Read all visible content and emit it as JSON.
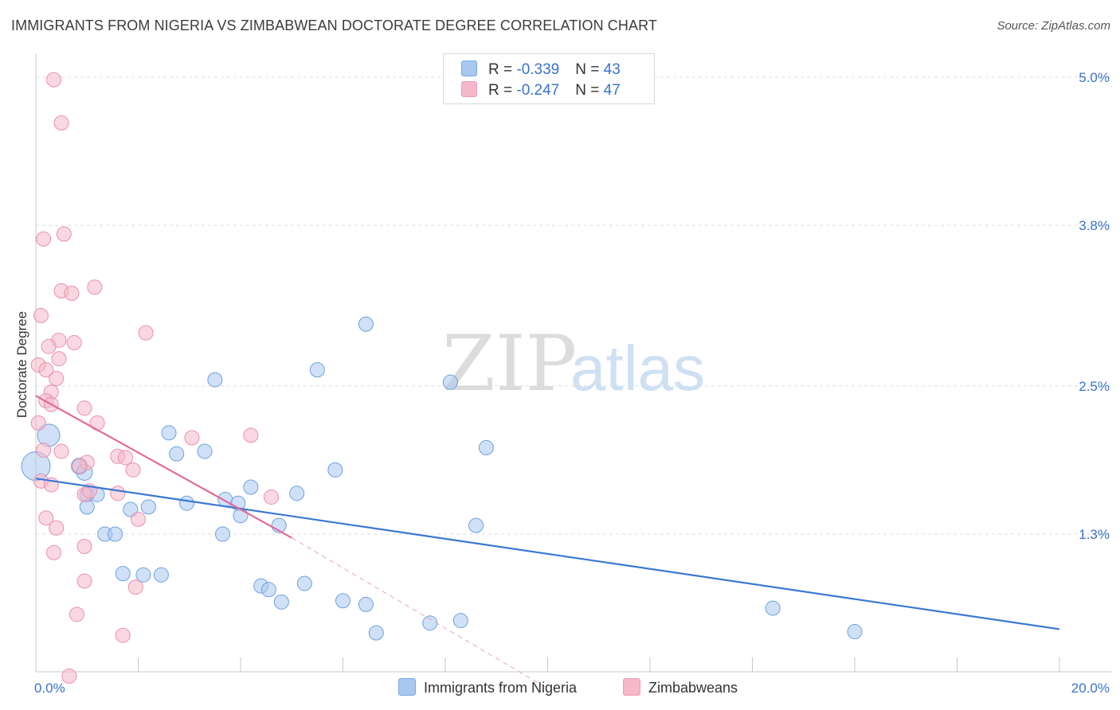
{
  "title": "IMMIGRANTS FROM NIGERIA VS ZIMBABWEAN DOCTORATE DEGREE CORRELATION CHART",
  "source": "Source: ZipAtlas.com",
  "watermark": {
    "zip": "ZIP",
    "atlas": "atlas"
  },
  "legend": {
    "rows": [
      {
        "r_label": "R = ",
        "r_value": "-0.339",
        "n_label": "N = ",
        "n_value": "43",
        "color": "#a9c8f0"
      },
      {
        "r_label": "R = ",
        "r_value": "-0.247",
        "n_label": "N = ",
        "n_value": "47",
        "color": "#f6b8cb"
      }
    ]
  },
  "bottom_legend": [
    {
      "label": "Immigrants from Nigeria",
      "color": "#a9c8f0"
    },
    {
      "label": "Zimbabweans",
      "color": "#f6b8cb"
    }
  ],
  "chart_data": {
    "type": "scatter",
    "title": "IMMIGRANTS FROM NIGERIA VS ZIMBABWEAN DOCTORATE DEGREE CORRELATION CHART",
    "xlabel": "",
    "ylabel": "Doctorate Degree",
    "xlim": [
      0,
      20
    ],
    "ylim": [
      0.05,
      5.25
    ],
    "x_tick_labels": [
      {
        "value": 0,
        "label": "0.0%"
      },
      {
        "value": 20,
        "label": "20.0%"
      }
    ],
    "y_tick_labels": [
      {
        "value": 5.0,
        "label": "5.0%"
      },
      {
        "value": 3.8,
        "label": "3.8%"
      },
      {
        "value": 2.5,
        "label": "2.5%"
      },
      {
        "value": 1.3,
        "label": "1.3%"
      }
    ],
    "x_minor_ticks": [
      2,
      4,
      6,
      8,
      10,
      12,
      14,
      16,
      18,
      20
    ],
    "grid": true,
    "series": [
      {
        "name": "Immigrants from Nigeria",
        "color": "#a9c8f0",
        "stroke": "#6d9fe0",
        "points": [
          [
            0.0,
            1.85,
            18
          ],
          [
            0.25,
            2.1,
            14
          ],
          [
            0.85,
            1.85,
            10
          ],
          [
            0.95,
            1.8,
            10
          ],
          [
            1.0,
            1.62,
            9
          ],
          [
            1.2,
            1.62,
            9
          ],
          [
            1.0,
            1.52,
            9
          ],
          [
            1.35,
            1.3,
            9
          ],
          [
            1.55,
            1.3,
            9
          ],
          [
            1.85,
            1.5,
            9
          ],
          [
            2.2,
            1.52,
            9
          ],
          [
            1.7,
            0.98,
            9
          ],
          [
            2.1,
            0.97,
            9
          ],
          [
            2.45,
            0.97,
            9
          ],
          [
            2.6,
            2.12,
            9
          ],
          [
            2.75,
            1.95,
            9
          ],
          [
            2.95,
            1.55,
            9
          ],
          [
            3.3,
            1.97,
            9
          ],
          [
            3.5,
            2.55,
            9
          ],
          [
            3.65,
            1.3,
            9
          ],
          [
            3.7,
            1.58,
            9
          ],
          [
            3.95,
            1.55,
            9
          ],
          [
            4.0,
            1.45,
            9
          ],
          [
            4.2,
            1.68,
            9
          ],
          [
            4.4,
            0.88,
            9
          ],
          [
            4.55,
            0.85,
            9
          ],
          [
            4.75,
            1.37,
            9
          ],
          [
            4.8,
            0.75,
            9
          ],
          [
            5.1,
            1.63,
            9
          ],
          [
            5.25,
            0.9,
            9
          ],
          [
            5.5,
            2.63,
            9
          ],
          [
            5.85,
            1.82,
            9
          ],
          [
            6.0,
            0.76,
            9
          ],
          [
            6.45,
            0.73,
            9
          ],
          [
            6.45,
            3.0,
            9
          ],
          [
            6.65,
            0.5,
            9
          ],
          [
            7.7,
            0.58,
            9
          ],
          [
            8.1,
            2.53,
            9
          ],
          [
            8.3,
            0.6,
            9
          ],
          [
            8.6,
            1.37,
            9
          ],
          [
            8.8,
            2.0,
            9
          ],
          [
            14.4,
            0.7,
            9
          ],
          [
            16.0,
            0.51,
            9
          ]
        ]
      },
      {
        "name": "Zimbabweans",
        "color": "#f6b8cb",
        "stroke": "#ea8fac",
        "points": [
          [
            0.35,
            4.98,
            9
          ],
          [
            0.5,
            4.63,
            9
          ],
          [
            0.55,
            3.73,
            9
          ],
          [
            0.15,
            3.69,
            9
          ],
          [
            0.5,
            3.27,
            9
          ],
          [
            0.7,
            3.25,
            9
          ],
          [
            1.15,
            3.3,
            9
          ],
          [
            0.1,
            3.07,
            9
          ],
          [
            0.45,
            2.87,
            9
          ],
          [
            0.75,
            2.85,
            9
          ],
          [
            0.25,
            2.82,
            9
          ],
          [
            0.45,
            2.72,
            9
          ],
          [
            0.05,
            2.67,
            9
          ],
          [
            0.2,
            2.63,
            9
          ],
          [
            0.4,
            2.56,
            9
          ],
          [
            0.3,
            2.45,
            9
          ],
          [
            0.2,
            2.38,
            9
          ],
          [
            0.3,
            2.35,
            9
          ],
          [
            0.05,
            2.2,
            9
          ],
          [
            0.5,
            1.97,
            9
          ],
          [
            0.95,
            2.32,
            9
          ],
          [
            1.2,
            2.2,
            9
          ],
          [
            2.15,
            2.93,
            9
          ],
          [
            3.05,
            2.08,
            9
          ],
          [
            4.2,
            2.1,
            9
          ],
          [
            1.6,
            1.93,
            9
          ],
          [
            1.75,
            1.92,
            9
          ],
          [
            1.0,
            1.88,
            9
          ],
          [
            0.85,
            1.85,
            9
          ],
          [
            1.9,
            1.82,
            9
          ],
          [
            0.15,
            1.98,
            9
          ],
          [
            0.1,
            1.73,
            9
          ],
          [
            0.3,
            1.7,
            9
          ],
          [
            0.95,
            1.62,
            9
          ],
          [
            1.05,
            1.65,
            9
          ],
          [
            1.6,
            1.63,
            9
          ],
          [
            0.2,
            1.43,
            9
          ],
          [
            0.4,
            1.35,
            9
          ],
          [
            2.0,
            1.42,
            9
          ],
          [
            4.6,
            1.6,
            9
          ],
          [
            0.35,
            1.15,
            9
          ],
          [
            0.95,
            1.2,
            9
          ],
          [
            0.95,
            0.92,
            9
          ],
          [
            1.95,
            0.87,
            9
          ],
          [
            0.8,
            0.65,
            9
          ],
          [
            1.7,
            0.48,
            9
          ],
          [
            0.65,
            0.15,
            9
          ]
        ]
      }
    ],
    "trend_lines": [
      {
        "series": "Immigrants from Nigeria",
        "color": "#3a78d4",
        "x": [
          0,
          20
        ],
        "y": [
          1.75,
          0.53
        ],
        "style": "solid"
      },
      {
        "series": "Zimbabweans",
        "color": "#e36a97",
        "x": [
          0,
          5.0
        ],
        "y": [
          2.42,
          1.27
        ],
        "style": "solid"
      },
      {
        "series": "Zimbabweans",
        "color": "#e8a3ba",
        "x": [
          5.0,
          10.0
        ],
        "y": [
          1.27,
          0.05
        ],
        "style": "dashed"
      }
    ]
  }
}
